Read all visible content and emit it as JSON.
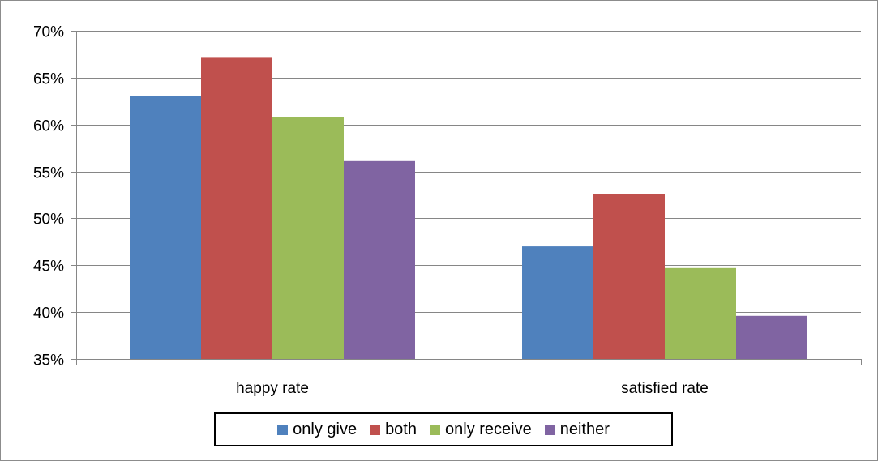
{
  "chart_data": {
    "type": "bar",
    "categories": [
      "happy rate",
      "satisfied rate"
    ],
    "series": [
      {
        "name": "only give",
        "color": "#4f81bd",
        "values": [
          63.0,
          47.0
        ]
      },
      {
        "name": "both",
        "color": "#c0504d",
        "values": [
          67.2,
          52.6
        ]
      },
      {
        "name": "only receive",
        "color": "#9bbb59",
        "values": [
          60.8,
          44.7
        ]
      },
      {
        "name": "neither",
        "color": "#8064a2",
        "values": [
          56.1,
          39.6
        ]
      }
    ],
    "ylim": [
      35,
      70
    ],
    "yticks": [
      35,
      40,
      45,
      50,
      55,
      60,
      65,
      70
    ],
    "ytick_labels": [
      "35%",
      "40%",
      "45%",
      "50%",
      "55%",
      "60%",
      "65%",
      "70%"
    ],
    "title": "",
    "xlabel": "",
    "ylabel": "",
    "grid": true,
    "legend_position": "bottom"
  }
}
